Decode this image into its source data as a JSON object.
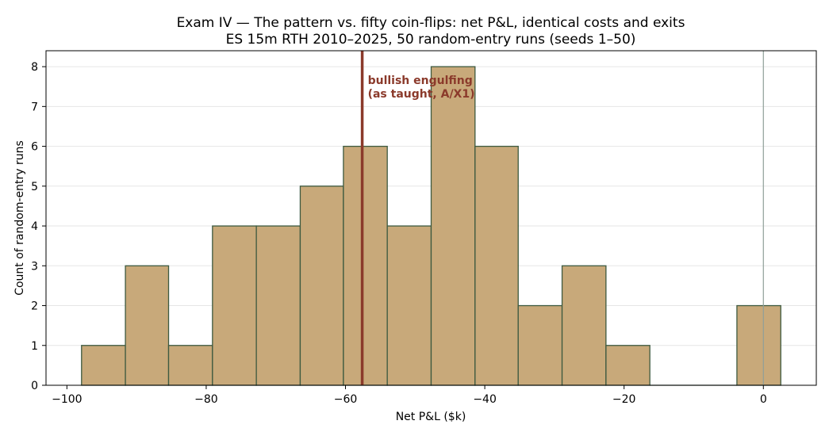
{
  "chart_data": {
    "type": "bar",
    "title": "Exam IV — The pattern vs. fifty coin-flips: net P&L, identical costs and exits",
    "subtitle": "ES 15m RTH 2010–2025, 50 random-entry runs (seeds 1–50)",
    "xlabel": "Net P&L ($k)",
    "ylabel": "Count of random-entry runs",
    "xlim": [
      -103,
      7.6
    ],
    "ylim": [
      0,
      8.4
    ],
    "xticks": [
      -100,
      -80,
      -60,
      -40,
      -20,
      0
    ],
    "yticks": [
      0,
      1,
      2,
      3,
      4,
      5,
      6,
      7,
      8
    ],
    "xtick_labels": [
      "−100",
      "−80",
      "−60",
      "−40",
      "−20",
      "0"
    ],
    "ytick_labels": [
      "0",
      "1",
      "2",
      "3",
      "4",
      "5",
      "6",
      "7",
      "8"
    ],
    "grid": "horizontal",
    "bins": [
      {
        "x0": -97.9,
        "x1": -91.6,
        "count": 1
      },
      {
        "x0": -91.6,
        "x1": -85.4,
        "count": 3
      },
      {
        "x0": -85.4,
        "x1": -79.1,
        "count": 1
      },
      {
        "x0": -79.1,
        "x1": -72.8,
        "count": 4
      },
      {
        "x0": -72.8,
        "x1": -66.5,
        "count": 4
      },
      {
        "x0": -66.5,
        "x1": -60.3,
        "count": 5
      },
      {
        "x0": -60.3,
        "x1": -54.0,
        "count": 6
      },
      {
        "x0": -54.0,
        "x1": -47.7,
        "count": 4
      },
      {
        "x0": -47.7,
        "x1": -41.4,
        "count": 8
      },
      {
        "x0": -41.4,
        "x1": -35.2,
        "count": 6
      },
      {
        "x0": -35.2,
        "x1": -28.9,
        "count": 2
      },
      {
        "x0": -28.9,
        "x1": -22.6,
        "count": 3
      },
      {
        "x0": -22.6,
        "x1": -16.3,
        "count": 1
      },
      {
        "x0": -16.3,
        "x1": -10.1,
        "count": 0
      },
      {
        "x0": -10.1,
        "x1": -3.8,
        "count": 0
      },
      {
        "x0": -3.8,
        "x1": 2.5,
        "count": 2
      }
    ],
    "reference_lines": [
      {
        "x": -57.6,
        "label_lines": [
          "bullish engulfing",
          "(as taught, A/X1)"
        ],
        "color": "#8b3a2b"
      },
      {
        "x": 0,
        "label_lines": [],
        "color": "#8f9f98"
      }
    ],
    "colors": {
      "bar_fill": "#c8a97a",
      "bar_edge": "#3d5a40",
      "grid": "#e6e6e6"
    }
  }
}
